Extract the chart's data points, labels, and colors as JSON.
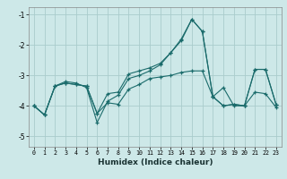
{
  "xlabel": "Humidex (Indice chaleur)",
  "bg_color": "#cde8e8",
  "grid_color": "#aacccc",
  "line_color": "#1a6b6b",
  "xlim": [
    -0.5,
    23.5
  ],
  "ylim": [
    -5.35,
    -0.75
  ],
  "yticks": [
    -5,
    -4,
    -3,
    -2,
    -1
  ],
  "ytick_labels": [
    "-5",
    "-4",
    "-3",
    "-2",
    "-1"
  ],
  "xticks": [
    0,
    1,
    2,
    3,
    4,
    5,
    6,
    7,
    8,
    9,
    10,
    11,
    12,
    13,
    14,
    15,
    16,
    17,
    18,
    19,
    20,
    21,
    22,
    23
  ],
  "lines": [
    {
      "x": [
        0,
        1,
        2,
        3,
        4,
        5,
        6,
        7,
        8,
        9,
        10,
        11,
        12,
        13,
        14,
        15,
        16,
        17,
        18,
        19,
        20,
        21,
        22,
        23
      ],
      "y": [
        -4.0,
        -4.3,
        -3.35,
        -3.2,
        -3.25,
        -3.4,
        -4.55,
        -3.85,
        -3.65,
        -3.1,
        -3.0,
        -2.85,
        -2.65,
        -2.25,
        -1.85,
        -1.15,
        -1.55,
        -3.7,
        -4.0,
        -3.95,
        -4.0,
        -3.55,
        -3.6,
        -4.05
      ]
    },
    {
      "x": [
        0,
        1,
        2,
        3,
        4,
        5,
        6,
        7,
        8,
        9,
        10,
        11,
        12,
        13,
        14,
        15,
        16,
        17,
        18,
        19,
        20,
        21,
        22,
        23
      ],
      "y": [
        -4.0,
        -4.3,
        -3.35,
        -3.25,
        -3.3,
        -3.35,
        -4.25,
        -3.9,
        -3.95,
        -3.45,
        -3.3,
        -3.1,
        -3.05,
        -3.0,
        -2.9,
        -2.85,
        -2.85,
        -3.7,
        -4.0,
        -3.95,
        -4.0,
        -2.8,
        -2.8,
        -3.95
      ]
    },
    {
      "x": [
        0,
        1,
        2,
        3,
        4,
        5,
        6,
        7,
        8,
        9,
        10,
        11,
        12,
        13,
        14,
        15,
        16,
        17,
        18,
        19,
        20,
        21,
        22,
        23
      ],
      "y": [
        -4.0,
        -4.3,
        -3.35,
        -3.25,
        -3.3,
        -3.35,
        -4.25,
        -3.6,
        -3.55,
        -2.95,
        -2.85,
        -2.75,
        -2.6,
        -2.25,
        -1.8,
        -1.15,
        -1.55,
        -3.7,
        -3.4,
        -4.0,
        -4.0,
        -2.8,
        -2.8,
        -3.95
      ]
    }
  ]
}
